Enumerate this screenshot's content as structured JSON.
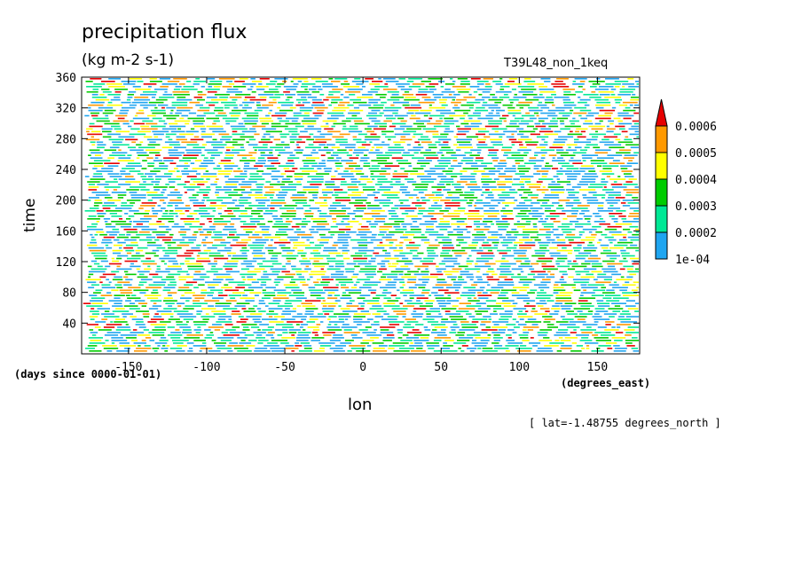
{
  "chart_data": {
    "type": "heatmap",
    "title": "precipitation flux",
    "units": "(kg m-2 s-1)",
    "run_label": "T39L48_non_1keq",
    "xlabel": "lon",
    "xunits": "(degrees_east)",
    "ylabel": "time",
    "yunits": "(days since 0000-01-01)",
    "annotation": "[ lat=-1.48755 degrees_north ]",
    "xlim": [
      -180,
      177
    ],
    "ylim": [
      0,
      360
    ],
    "x_ticks": [
      -150,
      -100,
      -50,
      0,
      50,
      100,
      150
    ],
    "x_tick_labels": [
      "-150",
      "-100",
      "-50",
      "0",
      "50",
      "100",
      "150"
    ],
    "y_ticks": [
      40,
      80,
      120,
      160,
      200,
      240,
      280,
      320,
      360
    ],
    "y_tick_labels": [
      "40",
      "80",
      "120",
      "160",
      "200",
      "240",
      "280",
      "320",
      "360"
    ],
    "colorbar": {
      "levels": [
        0.0001,
        0.0002,
        0.0003,
        0.0004,
        0.0005,
        0.0006
      ],
      "level_labels": [
        "1e-04",
        "0.0002",
        "0.0003",
        "0.0004",
        "0.0005",
        "0.0006"
      ],
      "colors": [
        "#1fa5f0",
        "#00e895",
        "#00cc00",
        "#ffff00",
        "#ff9900",
        "#e60000"
      ]
    },
    "grid": false
  }
}
